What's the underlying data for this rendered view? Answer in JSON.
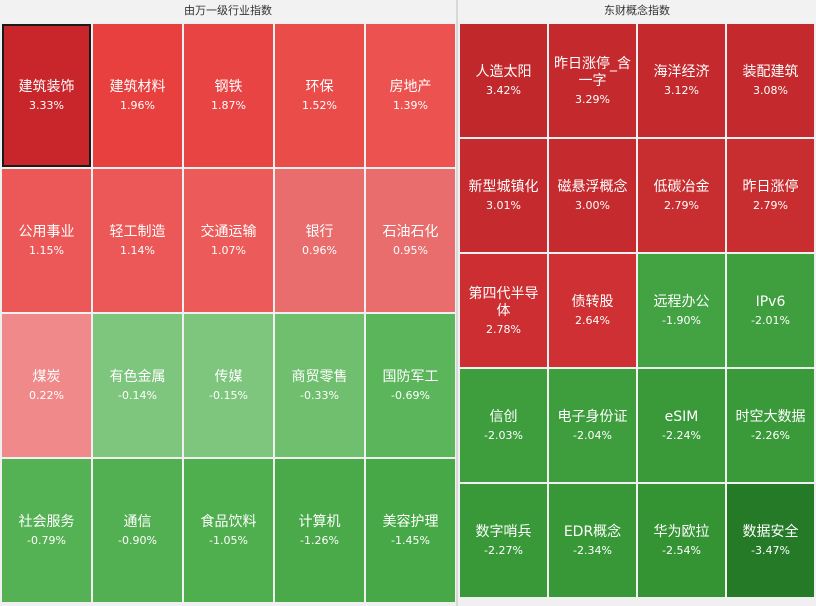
{
  "left_panel": {
    "title": "由万一级行业指数",
    "tiles": [
      {
        "name": "建筑装饰",
        "pct": "3.33%",
        "color": "#c8262a",
        "selected": true
      },
      {
        "name": "建筑材料",
        "pct": "1.96%",
        "color": "#e8403f"
      },
      {
        "name": "钢铁",
        "pct": "1.87%",
        "color": "#e84443"
      },
      {
        "name": "环保",
        "pct": "1.52%",
        "color": "#ea4c4a"
      },
      {
        "name": "房地产",
        "pct": "1.39%",
        "color": "#eb5250"
      },
      {
        "name": "公用事业",
        "pct": "1.15%",
        "color": "#ec5857"
      },
      {
        "name": "轻工制造",
        "pct": "1.14%",
        "color": "#ec5857"
      },
      {
        "name": "交通运输",
        "pct": "1.07%",
        "color": "#ec5b5a"
      },
      {
        "name": "银行",
        "pct": "0.96%",
        "color": "#e86d6c"
      },
      {
        "name": "石油石化",
        "pct": "0.95%",
        "color": "#e86d6c"
      },
      {
        "name": "煤炭",
        "pct": "0.22%",
        "color": "#f08a8a"
      },
      {
        "name": "有色金属",
        "pct": "-0.14%",
        "color": "#7ec57d"
      },
      {
        "name": "传媒",
        "pct": "-0.15%",
        "color": "#7ec57d"
      },
      {
        "name": "商贸零售",
        "pct": "-0.33%",
        "color": "#6fbf6e"
      },
      {
        "name": "国防军工",
        "pct": "-0.69%",
        "color": "#5bb55a"
      },
      {
        "name": "社会服务",
        "pct": "-0.79%",
        "color": "#55b254"
      },
      {
        "name": "通信",
        "pct": "-0.90%",
        "color": "#53b052"
      },
      {
        "name": "食品饮料",
        "pct": "-1.05%",
        "color": "#4fae4e"
      },
      {
        "name": "计算机",
        "pct": "-1.26%",
        "color": "#4aaa4a"
      },
      {
        "name": "美容护理",
        "pct": "-1.45%",
        "color": "#47a847"
      }
    ]
  },
  "right_panel": {
    "title": "东财概念指数",
    "tiles": [
      {
        "name": "人造太阳",
        "pct": "3.42%",
        "color": "#c0282c"
      },
      {
        "name": "昨日涨停_含一字",
        "pct": "3.29%",
        "color": "#c42a2d"
      },
      {
        "name": "海洋经济",
        "pct": "3.12%",
        "color": "#c42a2d"
      },
      {
        "name": "装配建筑",
        "pct": "3.08%",
        "color": "#c42a2d"
      },
      {
        "name": "新型城镇化",
        "pct": "3.01%",
        "color": "#c52b2e"
      },
      {
        "name": "磁悬浮概念",
        "pct": "3.00%",
        "color": "#c52b2e"
      },
      {
        "name": "低碳冶金",
        "pct": "2.79%",
        "color": "#c82d30"
      },
      {
        "name": "昨日涨停",
        "pct": "2.79%",
        "color": "#c82d30"
      },
      {
        "name": "第四代半导体",
        "pct": "2.78%",
        "color": "#cc2e31"
      },
      {
        "name": "债转股",
        "pct": "2.64%",
        "color": "#cf3033"
      },
      {
        "name": "远程办公",
        "pct": "-1.90%",
        "color": "#43a343"
      },
      {
        "name": "IPv6",
        "pct": "-2.01%",
        "color": "#3f9f3f"
      },
      {
        "name": "信创",
        "pct": "-2.03%",
        "color": "#3e9e3e"
      },
      {
        "name": "电子身份证",
        "pct": "-2.04%",
        "color": "#3e9e3e"
      },
      {
        "name": "eSIM",
        "pct": "-2.24%",
        "color": "#3a9a3a"
      },
      {
        "name": "时空大数据",
        "pct": "-2.26%",
        "color": "#3a9a3a"
      },
      {
        "name": "数字哨兵",
        "pct": "-2.27%",
        "color": "#399939"
      },
      {
        "name": "EDR概念",
        "pct": "-2.34%",
        "color": "#389838"
      },
      {
        "name": "华为欧拉",
        "pct": "-2.54%",
        "color": "#349434"
      },
      {
        "name": "数据安全",
        "pct": "-3.47%",
        "color": "#257a28"
      }
    ]
  }
}
